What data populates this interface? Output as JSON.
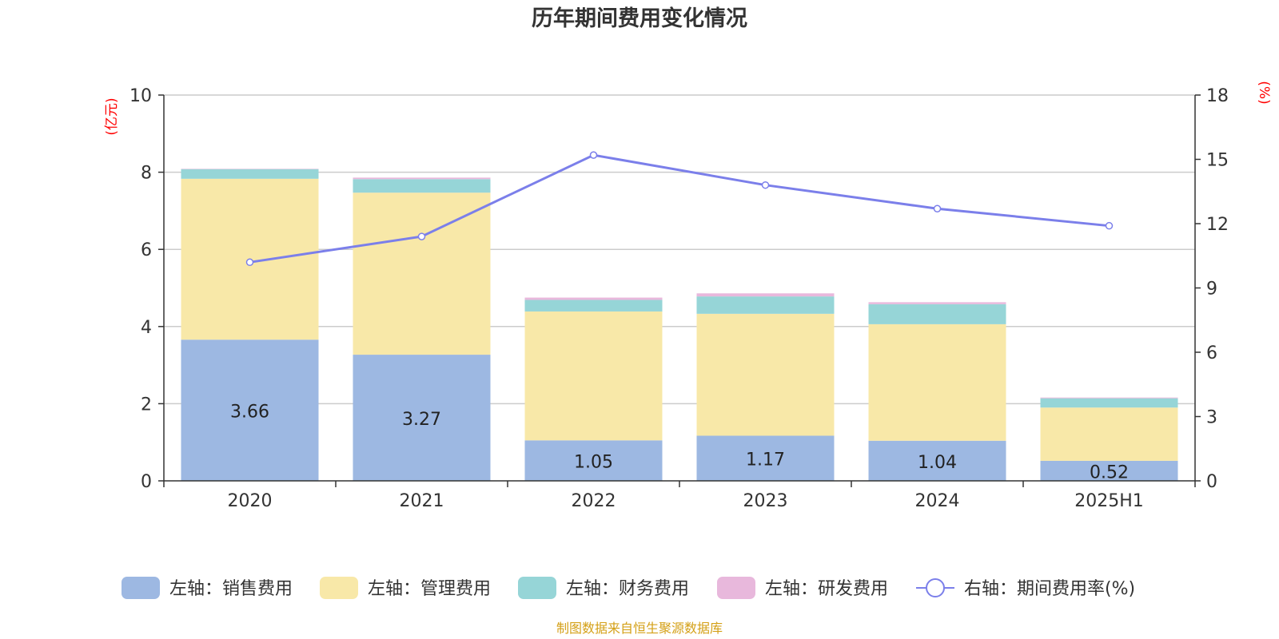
{
  "chart_data": {
    "type": "bar",
    "title": "历年期间费用变化情况",
    "categories": [
      "2020",
      "2021",
      "2022",
      "2023",
      "2024",
      "2025H1"
    ],
    "left_axis": {
      "unit": "(亿元)",
      "min": 0,
      "max": 10,
      "ticks": [
        "0",
        "2",
        "4",
        "6",
        "8",
        "10"
      ]
    },
    "right_axis": {
      "unit": "(%)",
      "min": 0,
      "max": 18,
      "ticks": [
        "0",
        "3",
        "6",
        "9",
        "12",
        "15",
        "18"
      ]
    },
    "series": [
      {
        "name": "左轴：销售费用",
        "stack": "left",
        "color": "#9db8e2",
        "values": [
          3.66,
          3.27,
          1.05,
          1.17,
          1.04,
          0.52
        ],
        "labels": [
          "3.66",
          "3.27",
          "1.05",
          "1.17",
          "1.04",
          "0.52"
        ]
      },
      {
        "name": "左轴：管理费用",
        "stack": "left",
        "color": "#f8e8a8",
        "values": [
          4.17,
          4.2,
          3.34,
          3.16,
          3.02,
          1.38
        ]
      },
      {
        "name": "左轴：财务费用",
        "stack": "left",
        "color": "#96d5d7",
        "values": [
          0.25,
          0.35,
          0.3,
          0.45,
          0.52,
          0.24
        ]
      },
      {
        "name": "左轴：研发费用",
        "stack": "left",
        "color": "#e8b8dc",
        "values": [
          0.01,
          0.04,
          0.06,
          0.08,
          0.05,
          0.02
        ]
      },
      {
        "name": "右轴：期间费用率(%)",
        "type": "line",
        "axis": "right",
        "color": "#7b7fea",
        "values": [
          10.2,
          11.4,
          15.2,
          13.8,
          12.7,
          11.9
        ]
      }
    ],
    "grid": true,
    "legend_position": "bottom"
  },
  "footer": {
    "source": "制图数据来自恒生聚源数据库"
  }
}
